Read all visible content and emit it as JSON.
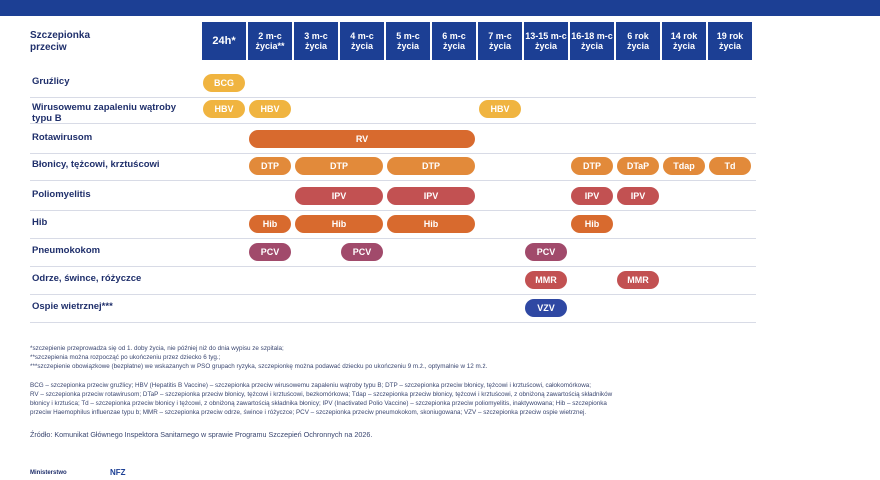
{
  "colors": {
    "header": "#1c3f94",
    "light": "#f0b440",
    "mid": "#e28a3a",
    "deep": "#d86a2e",
    "red": "#c25152",
    "plum": "#a14a6b",
    "blue": "#2f48a3"
  },
  "corner_label": "Szczepionka przeciw",
  "columns": [
    "24h*",
    "2 m-c życia**",
    "3 m-c życia",
    "4 m-c życia",
    "5 m-c życia",
    "6 m-c życia",
    "7 m-c życia",
    "13-15 m-c życia",
    "16-18 m-c życia",
    "6 rok życia",
    "14 rok życia",
    "19 rok życia"
  ],
  "rows": [
    {
      "label": "Gruźlicy",
      "bars": [
        {
          "text": "BCG",
          "start": 0,
          "span": 1,
          "color": "light"
        }
      ]
    },
    {
      "label": "Wirusowemu zapaleniu wątroby typu B",
      "bars": [
        {
          "text": "HBV",
          "start": 0,
          "span": 1,
          "color": "light"
        },
        {
          "text": "HBV",
          "start": 1,
          "span": 1,
          "color": "light"
        },
        {
          "text": "HBV",
          "start": 6,
          "span": 1,
          "color": "light"
        }
      ]
    },
    {
      "label": "Rotawirusom",
      "bars": [
        {
          "text": "RV",
          "start": 1,
          "span": 5,
          "color": "deep"
        }
      ]
    },
    {
      "label": "Błonicy, tężcowi, krztuścowi",
      "bars": [
        {
          "text": "DTP",
          "start": 1,
          "span": 1,
          "color": "mid"
        },
        {
          "text": "DTP",
          "start": 2,
          "span": 2,
          "color": "mid"
        },
        {
          "text": "DTP",
          "start": 4,
          "span": 2,
          "color": "mid"
        },
        {
          "text": "DTP",
          "start": 8,
          "span": 1,
          "color": "mid"
        },
        {
          "text": "DTaP",
          "start": 9,
          "span": 1,
          "color": "mid"
        },
        {
          "text": "Tdap",
          "start": 10,
          "span": 1,
          "color": "mid"
        },
        {
          "text": "Td",
          "start": 11,
          "span": 1,
          "color": "mid"
        }
      ]
    },
    {
      "label": "Poliomyelitis",
      "bars": [
        {
          "text": "IPV",
          "start": 2,
          "span": 2,
          "color": "red"
        },
        {
          "text": "IPV",
          "start": 4,
          "span": 2,
          "color": "red"
        },
        {
          "text": "IPV",
          "start": 8,
          "span": 1,
          "color": "red"
        },
        {
          "text": "IPV",
          "start": 9,
          "span": 1,
          "color": "red"
        }
      ]
    },
    {
      "label": "Hib",
      "bars": [
        {
          "text": "Hib",
          "start": 1,
          "span": 1,
          "color": "deep"
        },
        {
          "text": "Hib",
          "start": 2,
          "span": 2,
          "color": "deep"
        },
        {
          "text": "Hib",
          "start": 4,
          "span": 2,
          "color": "deep"
        },
        {
          "text": "Hib",
          "start": 8,
          "span": 1,
          "color": "deep"
        }
      ]
    },
    {
      "label": "Pneumokokom",
      "bars": [
        {
          "text": "PCV",
          "start": 1,
          "span": 1,
          "color": "plum"
        },
        {
          "text": "PCV",
          "start": 3,
          "span": 1,
          "color": "plum"
        },
        {
          "text": "PCV",
          "start": 7,
          "span": 1,
          "color": "plum"
        }
      ]
    },
    {
      "label": "Odrze, śwince, różyczce",
      "bars": [
        {
          "text": "MMR",
          "start": 7,
          "span": 1,
          "color": "red"
        },
        {
          "text": "MMR",
          "start": 9,
          "span": 1,
          "color": "red"
        }
      ]
    },
    {
      "label": "Ospie wietrznej***",
      "bars": [
        {
          "text": "VZV",
          "start": 7,
          "span": 1,
          "color": "blue"
        }
      ]
    }
  ],
  "footnotes": [
    "*szczepienie przeprowadza się od 1. doby życia, nie później niż do dnia wypisu ze szpitala;",
    "**szczepienia można rozpocząć po ukończeniu przez dziecko 6 tyg.;",
    "***szczepienie obowiązkowe (bezpłatne) we wskazanych w PSO grupach ryzyka, szczepionkę można podawać dziecku po ukończeniu 9 m.ż., optymalnie w 12 m.ż."
  ],
  "legend_lines": [
    "BCG – szczepionka przeciw gruźlicy; HBV (Hepatitis B Vaccine) – szczepionka przeciw wirusowemu zapaleniu wątroby typu B; DTP – szczepionka przeciw błonicy, tężcowi i krztuścowi, całokomórkowa;",
    "RV – szczepionka przeciw rotawirusom; DTaP – szczepionka przeciw błonicy, tężcowi i krztuścowi, bezkomórkowa; Tdap – szczepionka przeciw błonicy, tężcowi i krztuścowi, z obniżoną zawartością składników",
    "błonicy i krztuśca; Td – szczepionka przeciw błonicy i tężcowi, z obniżoną zawartością składnika błonicy; IPV (Inactivated Polio Vaccine) – szczepionka przeciw poliomyelitis, inaktywowana; Hib – szczepionka",
    "przeciw Haemophilus influenzae typu b; MMR – szczepionka przeciw odrze, śwince i różyczce; PCV – szczepionka przeciw pneumokokom, skoniugowana; VZV – szczepionka przeciw ospie wietrznej."
  ],
  "source": "Źródło: Komunikat Głównego Inspektora Sanitarnego w sprawie Programu Szczepień Ochronnych na 2026.",
  "footer": {
    "ministry": "Ministerstwo",
    "nfz": "NFZ"
  }
}
